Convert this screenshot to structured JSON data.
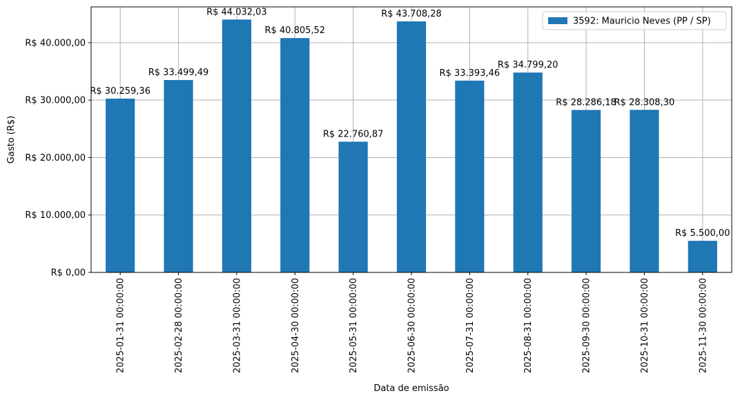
{
  "chart_data": {
    "type": "bar",
    "x_label": "Data de emissão",
    "y_label": "Gasto (R$)",
    "categories": [
      "2025-01-31 00:00:00",
      "2025-02-28 00:00:00",
      "2025-03-31 00:00:00",
      "2025-04-30 00:00:00",
      "2025-05-31 00:00:00",
      "2025-06-30 00:00:00",
      "2025-07-31 00:00:00",
      "2025-08-31 00:00:00",
      "2025-09-30 00:00:00",
      "2025-10-31 00:00:00",
      "2025-11-30 00:00:00"
    ],
    "series": [
      {
        "name": "3592: Mauricio Neves (PP / SP)",
        "color": "#1f77b4",
        "values": [
          30259.36,
          33499.49,
          44032.03,
          40805.52,
          22760.87,
          43708.28,
          33393.46,
          34799.2,
          28286.18,
          28308.3,
          5500.0
        ],
        "value_labels": [
          "R$ 30.259,36",
          "R$ 33.499,49",
          "R$ 44.032,03",
          "R$ 40.805,52",
          "R$ 22.760,87",
          "R$ 43.708,28",
          "R$ 33.393,46",
          "R$ 34.799,20",
          "R$ 28.286,18",
          "R$ 28.308,30",
          "R$ 5.500,00"
        ]
      }
    ],
    "ylim": [
      0,
      46233.6
    ],
    "yticks": [
      {
        "value": 0,
        "label": "R$ 0,00"
      },
      {
        "value": 10000,
        "label": "R$ 10.000,00"
      },
      {
        "value": 20000,
        "label": "R$ 20.000,00"
      },
      {
        "value": 30000,
        "label": "R$ 30.000,00"
      },
      {
        "value": 40000,
        "label": "R$ 40.000,00"
      }
    ],
    "grid": true,
    "legend": "upper right"
  }
}
